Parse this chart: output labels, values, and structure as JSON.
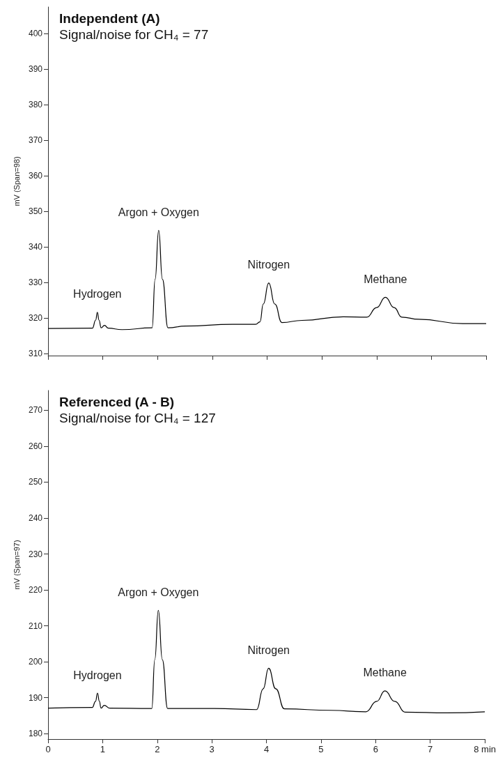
{
  "chart_data": [
    {
      "type": "line",
      "title": "Independent (A)",
      "subtitle": "Signal/noise for CH₄ = 77",
      "ylabel": "mV (Span=98)",
      "color": "#000000",
      "x": [
        0,
        0.81,
        0.87,
        0.9,
        0.93,
        0.97,
        1.03,
        1.1,
        1.35,
        1.9,
        1.955,
        2.02,
        2.088,
        2.19,
        2.51,
        3.37,
        3.79,
        3.87,
        3.93,
        4.03,
        4.14,
        4.27,
        4.64,
        5.39,
        5.82,
        6.0,
        6.16,
        6.32,
        6.46,
        6.77,
        7.57,
        8.0
      ],
      "values": [
        317.1,
        317.2,
        319.5,
        321.7,
        319.5,
        317.3,
        318.0,
        317.2,
        316.8,
        317.3,
        331,
        344.7,
        331,
        317.3,
        317.8,
        318.3,
        318.3,
        319.0,
        324,
        329.9,
        324,
        318.8,
        319.4,
        320.4,
        320.3,
        323,
        325.9,
        323,
        320.3,
        319.7,
        318.5,
        318.5
      ],
      "xlim": [
        0,
        8
      ],
      "xticks": [
        0,
        1,
        2,
        3,
        4,
        5,
        6,
        7,
        8
      ],
      "ylim": [
        309.5,
        407.5
      ],
      "yticks": [
        310,
        320,
        330,
        340,
        350,
        360,
        370,
        380,
        390,
        400
      ],
      "tick_labels": "y",
      "annotations": [
        "Hydrogen",
        "Argon + Oxygen",
        "Nitrogen",
        "Methane"
      ]
    },
    {
      "type": "line",
      "title": "Referenced (A - B)",
      "subtitle": "Signal/noise for CH₄ = 127",
      "ylabel": "mV (Span=97)",
      "color": "#000000",
      "x": [
        0,
        0.81,
        0.87,
        0.905,
        0.94,
        0.97,
        1.03,
        1.13,
        1.9,
        1.955,
        2.02,
        2.093,
        2.19,
        3.05,
        3.82,
        3.94,
        4.04,
        4.17,
        4.33,
        5.18,
        5.82,
        6.02,
        6.17,
        6.35,
        6.54,
        7.31,
        8.0
      ],
      "values": [
        187.1,
        187.3,
        189.0,
        191.3,
        189.0,
        187.1,
        187.9,
        187.1,
        187.0,
        200.6,
        214.3,
        200.6,
        187.0,
        187.0,
        186.7,
        192.5,
        198.2,
        192.5,
        186.9,
        186.5,
        186.1,
        189.0,
        191.9,
        189.0,
        186.0,
        185.8,
        186.1
      ],
      "xlim": [
        0,
        8
      ],
      "xticks": [
        0,
        1,
        2,
        3,
        4,
        5,
        6,
        7,
        {
          "value": 8,
          "label": "8 min"
        }
      ],
      "ylim": [
        178.5,
        275.5
      ],
      "yticks": [
        180,
        190,
        200,
        210,
        220,
        230,
        240,
        250,
        260,
        270
      ],
      "annotations": [
        "Hydrogen",
        "Argon + Oxygen",
        "Nitrogen",
        "Methane"
      ]
    }
  ]
}
